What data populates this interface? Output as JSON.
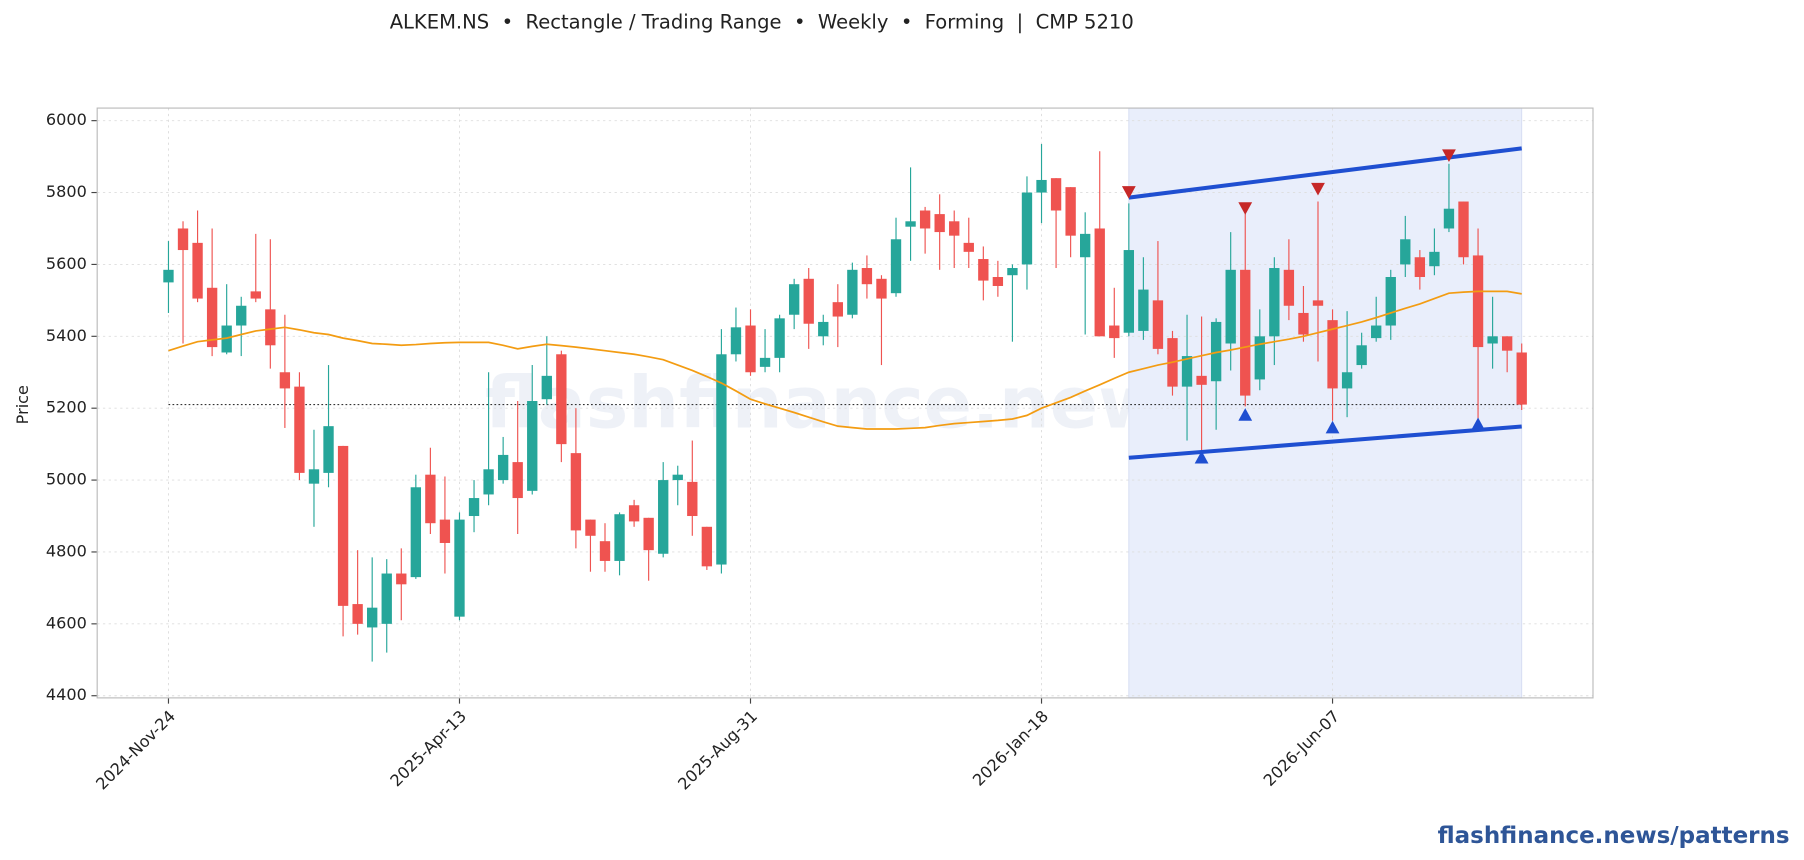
{
  "chart_data": {
    "type": "candlestick",
    "title": "ALKEM.NS  •  Rectangle / Trading Range  •  Weekly  •  Forming  |  CMP 5210",
    "ylabel": "Price",
    "watermark": "flashfinance.news",
    "footer": "flashfinance.news/patterns",
    "x": [
      "2024-Nov-24",
      "2024-Dec-01",
      "2024-Dec-08",
      "2024-Dec-15",
      "2024-Dec-22",
      "2024-Dec-29",
      "2025-Jan-05",
      "2025-Jan-12",
      "2025-Jan-19",
      "2025-Jan-26",
      "2025-Feb-02",
      "2025-Feb-09",
      "2025-Feb-16",
      "2025-Feb-23",
      "2025-Mar-02",
      "2025-Mar-09",
      "2025-Mar-16",
      "2025-Mar-23",
      "2025-Mar-30",
      "2025-Apr-06",
      "2025-Apr-13",
      "2025-Apr-20",
      "2025-Apr-27",
      "2025-May-04",
      "2025-May-11",
      "2025-May-18",
      "2025-May-25",
      "2025-Jun-01",
      "2025-Jun-08",
      "2025-Jun-15",
      "2025-Jun-22",
      "2025-Jun-29",
      "2025-Jul-06",
      "2025-Jul-13",
      "2025-Jul-20",
      "2025-Jul-27",
      "2025-Aug-03",
      "2025-Aug-10",
      "2025-Aug-17",
      "2025-Aug-24",
      "2025-Aug-31",
      "2025-Sep-07",
      "2025-Sep-14",
      "2025-Sep-21",
      "2025-Sep-28",
      "2025-Oct-05",
      "2025-Oct-12",
      "2025-Oct-19",
      "2025-Oct-26",
      "2025-Nov-02",
      "2025-Nov-09",
      "2025-Nov-16",
      "2025-Nov-23",
      "2025-Nov-30",
      "2025-Dec-07",
      "2025-Dec-14",
      "2025-Dec-21",
      "2025-Dec-28",
      "2026-Jan-04",
      "2026-Jan-11",
      "2026-Jan-18",
      "2026-Jan-25",
      "2026-Feb-01",
      "2026-Feb-08",
      "2026-Feb-15",
      "2026-Feb-22",
      "2026-Mar-01",
      "2026-Mar-08",
      "2026-Mar-15",
      "2026-Mar-22",
      "2026-Mar-29",
      "2026-Apr-05",
      "2026-Apr-12",
      "2026-Apr-19",
      "2026-Apr-26",
      "2026-May-03",
      "2026-May-10",
      "2026-May-17",
      "2026-May-24",
      "2026-May-31",
      "2026-Jun-07",
      "2026-Jun-14",
      "2026-Jun-21",
      "2026-Jun-28",
      "2026-Jul-05",
      "2026-Jul-12",
      "2026-Jul-19",
      "2026-Jul-26",
      "2026-Aug-02",
      "2026-Aug-09",
      "2026-Aug-16",
      "2026-Aug-23",
      "2026-Aug-30",
      "2026-Sep-06"
    ],
    "open": [
      5550,
      5700,
      5660,
      5535,
      5355,
      5430,
      5525,
      5475,
      5300,
      5260,
      4990,
      5020,
      5095,
      4655,
      4590,
      4600,
      4740,
      4730,
      5015,
      4890,
      4620,
      4900,
      4960,
      5000,
      5050,
      4970,
      5225,
      5350,
      5075,
      4890,
      4830,
      4775,
      4930,
      4895,
      4795,
      5000,
      4995,
      4870,
      4765,
      5350,
      5430,
      5315,
      5340,
      5460,
      5560,
      5400,
      5495,
      5460,
      5590,
      5560,
      5520,
      5705,
      5750,
      5740,
      5720,
      5660,
      5615,
      5565,
      5570,
      5600,
      5800,
      5840,
      5815,
      5620,
      5700,
      5430,
      5410,
      5415,
      5500,
      5395,
      5260,
      5290,
      5275,
      5380,
      5585,
      5280,
      5400,
      5585,
      5465,
      5500,
      5445,
      5255,
      5320,
      5395,
      5430,
      5600,
      5620,
      5595,
      5700,
      5775,
      5625,
      5380,
      5400,
      5355
    ],
    "high": [
      5665,
      5720,
      5750,
      5700,
      5545,
      5510,
      5685,
      5670,
      5460,
      5300,
      5140,
      5320,
      5095,
      4805,
      4785,
      4780,
      4810,
      5015,
      5090,
      5010,
      4910,
      5000,
      5300,
      5120,
      5220,
      5320,
      5400,
      5360,
      5200,
      4890,
      4880,
      4910,
      4945,
      4895,
      5050,
      5040,
      5110,
      4870,
      5420,
      5480,
      5475,
      5420,
      5460,
      5560,
      5590,
      5460,
      5545,
      5605,
      5625,
      5570,
      5730,
      5870,
      5760,
      5795,
      5750,
      5730,
      5650,
      5610,
      5600,
      5845,
      5935,
      5840,
      5815,
      5745,
      5915,
      5535,
      5770,
      5620,
      5665,
      5415,
      5460,
      5455,
      5450,
      5690,
      5740,
      5475,
      5620,
      5670,
      5540,
      5775,
      5475,
      5470,
      5410,
      5510,
      5585,
      5735,
      5640,
      5700,
      5880,
      5775,
      5700,
      5510,
      5400,
      5380
    ],
    "low": [
      5465,
      5380,
      5495,
      5345,
      5350,
      5345,
      5495,
      5310,
      5145,
      5000,
      4870,
      4980,
      4565,
      4570,
      4495,
      4520,
      4610,
      4725,
      4850,
      4740,
      4610,
      4855,
      4930,
      4990,
      4850,
      4960,
      5210,
      5050,
      4810,
      4745,
      4745,
      4735,
      4870,
      4720,
      4785,
      4930,
      4845,
      4750,
      4740,
      5330,
      5290,
      5300,
      5300,
      5420,
      5365,
      5375,
      5370,
      5450,
      5505,
      5320,
      5510,
      5610,
      5630,
      5585,
      5590,
      5590,
      5500,
      5510,
      5385,
      5530,
      5715,
      5590,
      5620,
      5405,
      5400,
      5340,
      5400,
      5390,
      5350,
      5235,
      5110,
      5080,
      5140,
      5305,
      5205,
      5250,
      5320,
      5445,
      5385,
      5330,
      5165,
      5175,
      5310,
      5385,
      5390,
      5565,
      5530,
      5570,
      5690,
      5600,
      5170,
      5310,
      5300,
      5195
    ],
    "close": [
      5585,
      5640,
      5505,
      5370,
      5430,
      5485,
      5505,
      5375,
      5255,
      5020,
      5030,
      5150,
      4650,
      4600,
      4645,
      4740,
      4710,
      4980,
      4880,
      4825,
      4890,
      4950,
      5030,
      5070,
      4950,
      5220,
      5290,
      5100,
      4860,
      4845,
      4775,
      4905,
      4885,
      4805,
      5000,
      5015,
      4900,
      4760,
      5350,
      5425,
      5300,
      5340,
      5450,
      5545,
      5435,
      5440,
      5455,
      5585,
      5545,
      5505,
      5670,
      5720,
      5700,
      5690,
      5680,
      5635,
      5555,
      5540,
      5590,
      5800,
      5835,
      5750,
      5680,
      5685,
      5400,
      5395,
      5640,
      5530,
      5365,
      5260,
      5345,
      5265,
      5440,
      5585,
      5235,
      5400,
      5590,
      5485,
      5405,
      5485,
      5255,
      5300,
      5375,
      5430,
      5565,
      5670,
      5565,
      5635,
      5755,
      5620,
      5370,
      5400,
      5360,
      5210
    ],
    "up_color": "#26a69a",
    "down_color": "#ef5350",
    "ma": {
      "color": "#f39c12",
      "values": [
        5360,
        5373,
        5385,
        5390,
        5395,
        5405,
        5415,
        5420,
        5425,
        5418,
        5410,
        5405,
        5395,
        5388,
        5380,
        5378,
        5375,
        5377,
        5380,
        5382,
        5383,
        5383,
        5383,
        5375,
        5365,
        5372,
        5378,
        5374,
        5370,
        5365,
        5360,
        5355,
        5350,
        5343,
        5335,
        5320,
        5305,
        5288,
        5270,
        5248,
        5225,
        5212,
        5200,
        5188,
        5175,
        5162,
        5150,
        5146,
        5142,
        5142,
        5142,
        5144,
        5146,
        5152,
        5157,
        5160,
        5163,
        5166,
        5170,
        5180,
        5200,
        5215,
        5230,
        5248,
        5265,
        5283,
        5300,
        5310,
        5320,
        5328,
        5337,
        5346,
        5355,
        5362,
        5370,
        5378,
        5385,
        5392,
        5400,
        5410,
        5420,
        5430,
        5440,
        5452,
        5465,
        5478,
        5490,
        5505,
        5520,
        5523,
        5525,
        5525,
        5525,
        5518
      ]
    },
    "reference_line": {
      "value": 5210,
      "color": "#333333"
    },
    "pattern": {
      "start": "2026-Mar-01",
      "end": "2026-Sep-06",
      "upper": [
        5786,
        5923
      ],
      "lower": [
        5062,
        5149
      ],
      "color": "#1f4fd1",
      "shade": "#e9eefb"
    },
    "high_markers": {
      "color": "#c62828",
      "points": [
        {
          "x": "2026-Mar-01",
          "value": 5802
        },
        {
          "x": "2026-Apr-26",
          "value": 5757
        },
        {
          "x": "2026-May-31",
          "value": 5811
        },
        {
          "x": "2026-Aug-02",
          "value": 5904
        }
      ]
    },
    "low_markers": {
      "color": "#1f4fd1",
      "points": [
        {
          "x": "2026-Apr-05",
          "value": 5062
        },
        {
          "x": "2026-Apr-26",
          "value": 5181
        },
        {
          "x": "2026-Jun-07",
          "value": 5146
        },
        {
          "x": "2026-Aug-16",
          "value": 5155
        }
      ]
    },
    "ylim": [
      4394,
      6035
    ],
    "yticks": [
      4400,
      4600,
      4800,
      5000,
      5200,
      5400,
      5600,
      5800,
      6000
    ],
    "xticks": [
      "2024-Nov-24",
      "2025-Apr-13",
      "2025-Aug-31",
      "2026-Jan-18",
      "2026-Jun-07"
    ],
    "grid": true
  }
}
